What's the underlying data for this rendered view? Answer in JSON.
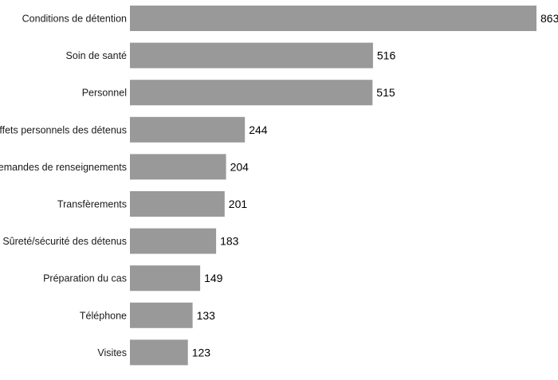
{
  "chart_data": {
    "type": "bar",
    "orientation": "horizontal",
    "categories": [
      "Conditions de détention",
      "Soin de santé",
      "Personnel",
      "Effets personnels des détenus",
      "Demandes de renseignements",
      "Transfèrements",
      "Sûreté/sécurité des détenus",
      "Préparation du cas",
      "Téléphone",
      "Visites"
    ],
    "values": [
      863,
      516,
      515,
      244,
      204,
      201,
      183,
      149,
      133,
      123
    ],
    "bar_color": "#999999",
    "title": "",
    "xlabel": "",
    "ylabel": "",
    "xlim": [
      0,
      863
    ],
    "grid": false,
    "legend": "none",
    "data_labels": true
  }
}
